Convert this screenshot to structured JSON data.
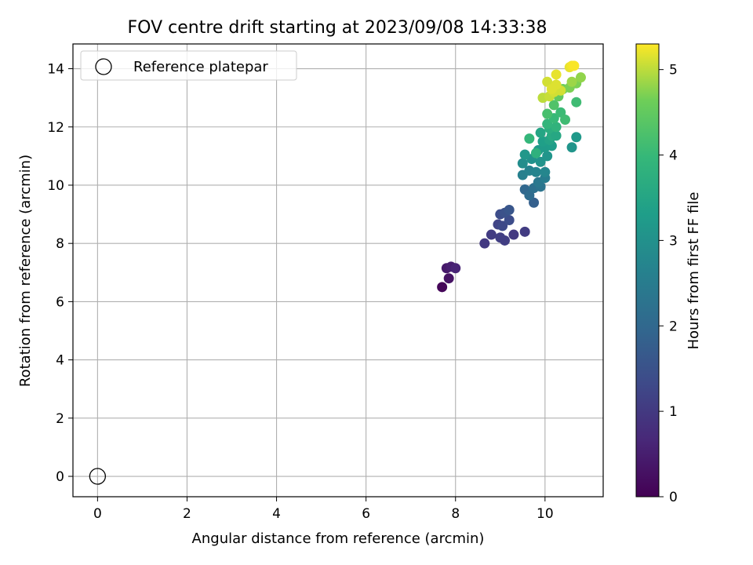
{
  "chart_data": {
    "type": "scatter",
    "title": "FOV centre drift starting at 2023/09/08 14:33:38",
    "xlabel": "Angular distance from reference (arcmin)",
    "ylabel": "Rotation from reference (arcmin)",
    "xlim": [
      -0.55,
      11.3
    ],
    "ylim": [
      -0.7,
      14.85
    ],
    "xticks": [
      "0",
      "2",
      "4",
      "6",
      "8",
      "10"
    ],
    "yticks": [
      "0",
      "2",
      "4",
      "6",
      "8",
      "10",
      "12",
      "14"
    ],
    "grid": true,
    "legend": {
      "placement": "top-left",
      "entries": [
        "Reference platepar"
      ]
    },
    "colorbar": {
      "label": "Hours from first FF file",
      "colormap": "viridis",
      "range": [
        0,
        5.3
      ],
      "ticks": [
        "0",
        "1",
        "2",
        "3",
        "4",
        "5"
      ]
    },
    "reference_point": {
      "x": 0,
      "y": 0
    },
    "series": [
      {
        "points": [
          [
            7.7,
            6.5,
            0.1
          ],
          [
            7.85,
            6.8,
            0.3
          ],
          [
            7.8,
            7.15,
            0.4
          ],
          [
            7.9,
            7.2,
            0.5
          ],
          [
            8.0,
            7.15,
            0.6
          ],
          [
            8.65,
            8.0,
            1.0
          ],
          [
            8.8,
            8.3,
            1.05
          ],
          [
            9.1,
            8.1,
            1.1
          ],
          [
            9.0,
            8.2,
            1.1
          ],
          [
            9.3,
            8.3,
            1.0
          ],
          [
            9.55,
            8.4,
            1.05
          ],
          [
            8.95,
            8.65,
            1.2
          ],
          [
            9.05,
            8.6,
            1.3
          ],
          [
            9.2,
            8.8,
            1.4
          ],
          [
            9.0,
            9.0,
            1.4
          ],
          [
            9.1,
            9.05,
            1.5
          ],
          [
            9.2,
            9.15,
            1.6
          ],
          [
            9.75,
            9.4,
            1.8
          ],
          [
            9.55,
            9.85,
            2.0
          ],
          [
            9.65,
            9.65,
            2.1
          ],
          [
            9.75,
            9.9,
            2.2
          ],
          [
            9.9,
            9.95,
            2.3
          ],
          [
            9.85,
            10.1,
            2.4
          ],
          [
            10.0,
            10.25,
            2.5
          ],
          [
            9.5,
            10.35,
            2.6
          ],
          [
            9.65,
            10.5,
            2.65
          ],
          [
            9.8,
            10.45,
            2.7
          ],
          [
            10.0,
            10.45,
            2.75
          ],
          [
            9.5,
            10.75,
            2.9
          ],
          [
            9.7,
            10.9,
            3.0
          ],
          [
            9.9,
            10.8,
            3.05
          ],
          [
            10.05,
            11.0,
            3.1
          ],
          [
            9.55,
            11.05,
            3.15
          ],
          [
            10.6,
            11.3,
            3.1
          ],
          [
            9.85,
            11.2,
            3.2
          ],
          [
            10.0,
            11.3,
            3.25
          ],
          [
            10.15,
            11.35,
            3.3
          ],
          [
            10.7,
            11.65,
            3.2
          ],
          [
            9.95,
            11.5,
            3.35
          ],
          [
            10.1,
            11.55,
            3.45
          ],
          [
            9.9,
            11.8,
            3.5
          ],
          [
            10.15,
            11.7,
            3.6
          ],
          [
            10.25,
            11.7,
            3.55
          ],
          [
            9.8,
            11.1,
            3.8
          ],
          [
            10.1,
            11.95,
            3.7
          ],
          [
            10.25,
            12.0,
            3.85
          ],
          [
            10.05,
            12.1,
            3.9
          ],
          [
            9.65,
            11.6,
            3.95
          ],
          [
            10.2,
            12.3,
            4.0
          ],
          [
            10.35,
            12.5,
            4.05
          ],
          [
            10.45,
            12.25,
            4.1
          ],
          [
            10.05,
            12.45,
            4.2
          ],
          [
            10.2,
            12.75,
            4.3
          ],
          [
            10.7,
            12.85,
            4.1
          ],
          [
            10.3,
            13.05,
            4.5
          ],
          [
            10.4,
            13.3,
            4.6
          ],
          [
            10.55,
            13.35,
            4.7
          ],
          [
            10.7,
            13.5,
            4.7
          ],
          [
            10.8,
            13.7,
            4.8
          ],
          [
            10.6,
            13.55,
            4.85
          ],
          [
            9.95,
            13.0,
            5.0
          ],
          [
            10.1,
            13.05,
            5.05
          ],
          [
            10.2,
            13.2,
            5.1
          ],
          [
            10.35,
            13.25,
            5.1
          ],
          [
            10.05,
            13.55,
            5.1
          ],
          [
            10.25,
            13.45,
            5.15
          ],
          [
            10.15,
            13.3,
            5.15
          ],
          [
            10.25,
            13.8,
            5.2
          ],
          [
            10.55,
            14.05,
            5.2
          ],
          [
            10.6,
            14.1,
            5.25
          ],
          [
            10.65,
            14.1,
            5.28
          ]
        ]
      }
    ]
  }
}
